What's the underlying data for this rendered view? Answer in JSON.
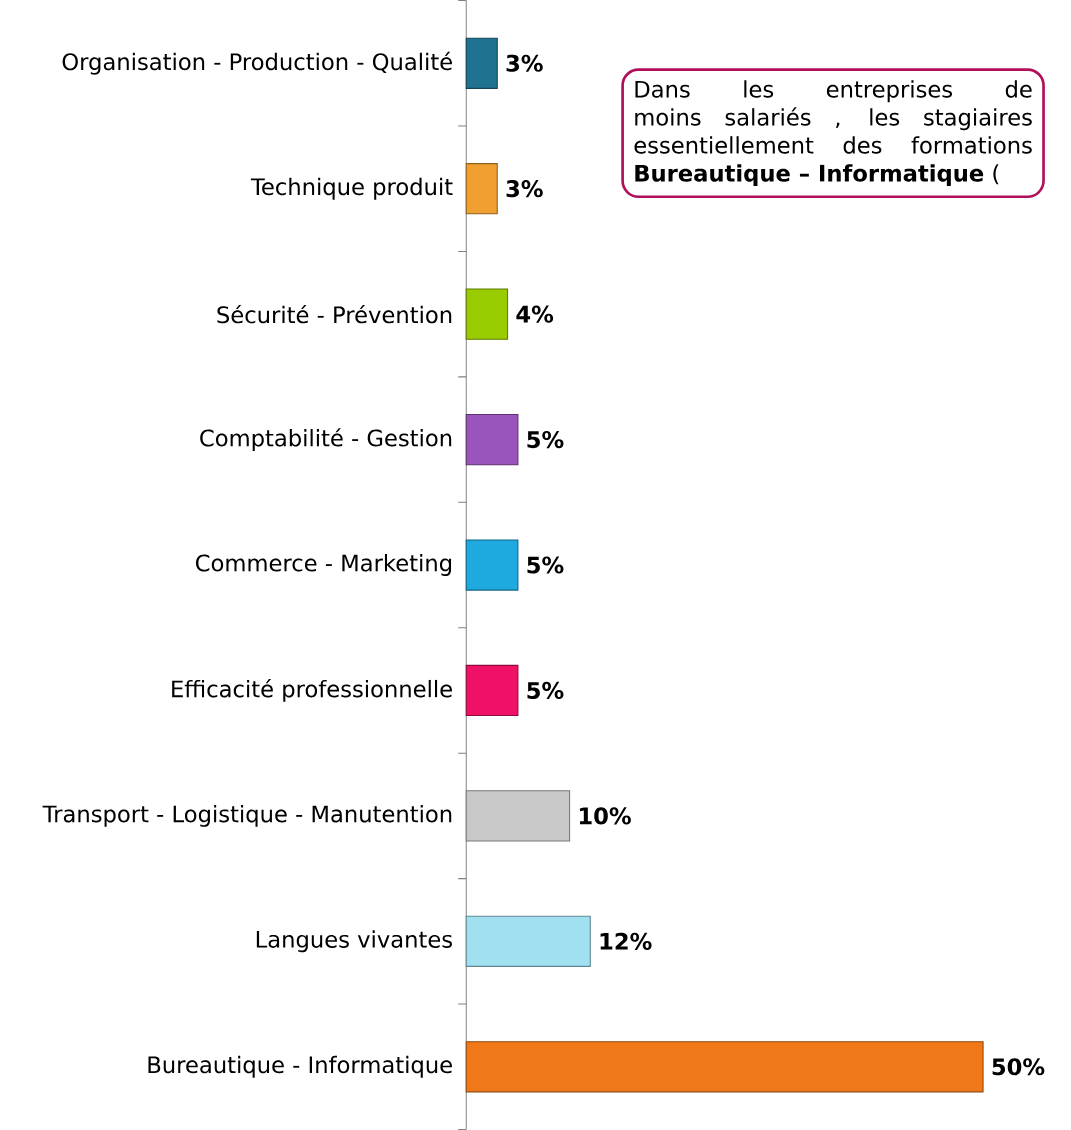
{
  "chart_data": {
    "type": "bar",
    "orientation": "horizontal",
    "categories": [
      "Organisation - Production - Qualité",
      "Technique produit",
      "Sécurité - Prévention",
      "Comptabilité - Gestion",
      "Commerce - Marketing",
      "Efficacité professionnelle",
      "Transport - Logistique - Manutention",
      "Langues vivantes",
      "Bureautique - Informatique"
    ],
    "values": [
      3,
      3,
      4,
      5,
      5,
      5,
      10,
      12,
      50
    ],
    "value_labels": [
      "3%",
      "3%",
      "4%",
      "5%",
      "5%",
      "5%",
      "10%",
      "12%",
      "50%"
    ],
    "colors": [
      "#1f7391",
      "#f0a030",
      "#99cc00",
      "#9955bb",
      "#1eaadf",
      "#ee1166",
      "#c8c8c8",
      "#a0e0f0",
      "#f07818"
    ],
    "tick_labels": "y",
    "annotations": [
      "Dans les entreprises de moins salariés , les stagiaires essentiellement des formations **Bureautique – Informatique** ("
    ]
  }
}
